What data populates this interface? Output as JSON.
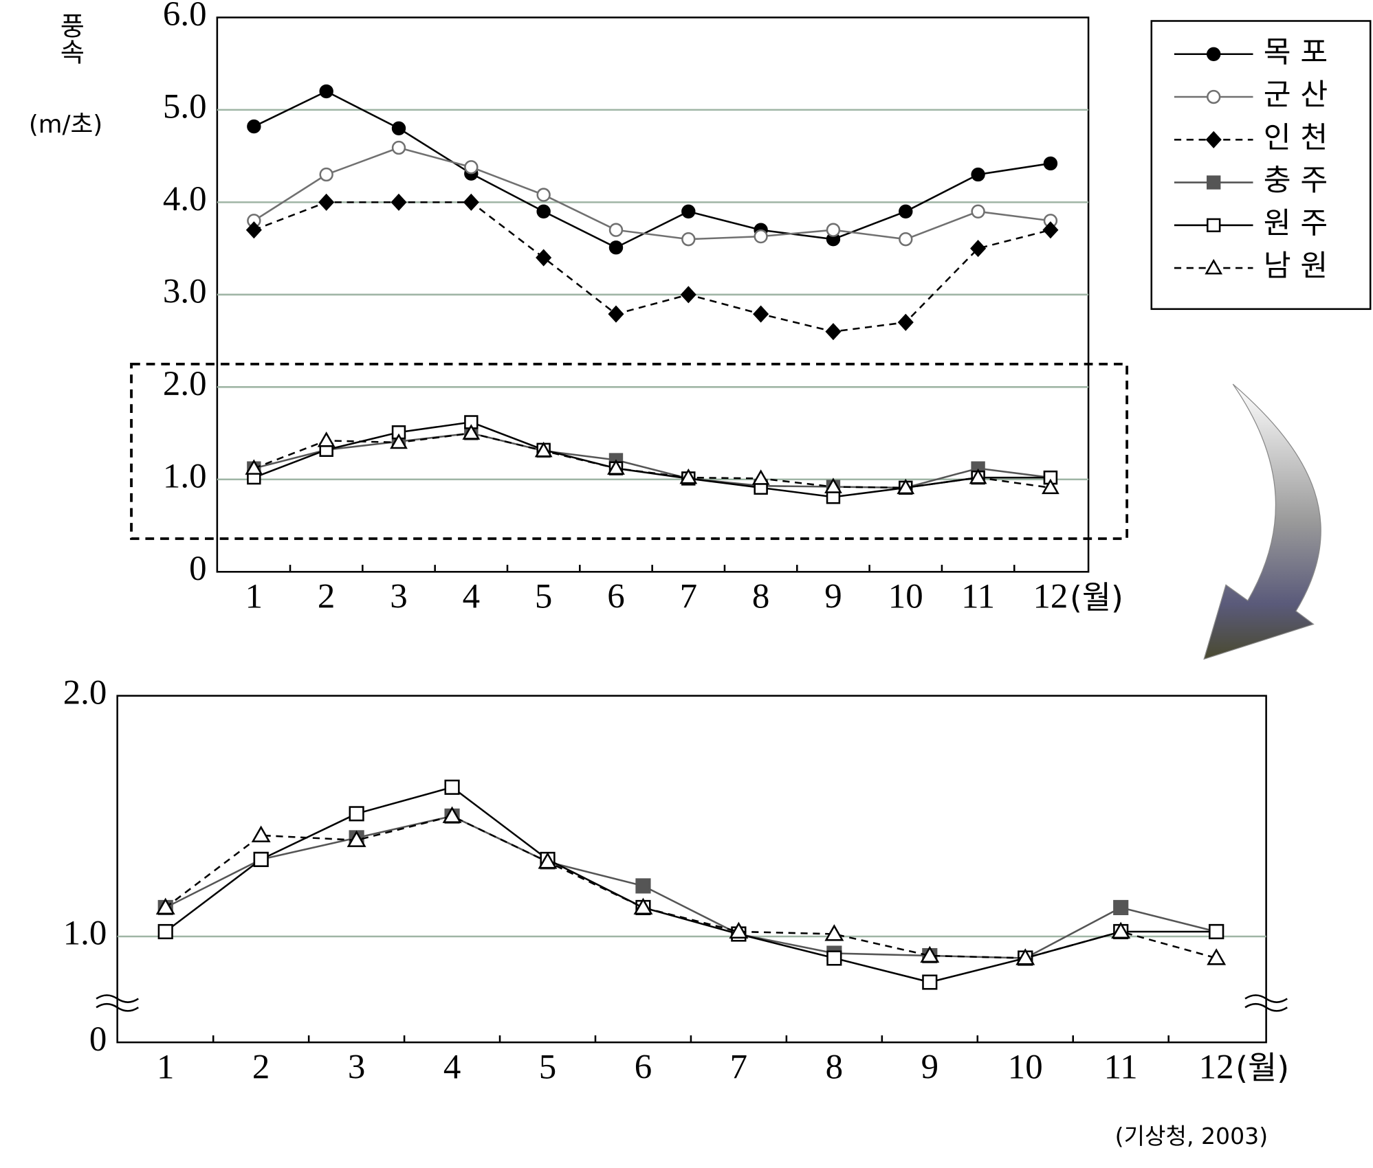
{
  "chart_data": [
    {
      "type": "line",
      "y_label": "풍속",
      "y_unit": "(m/초)",
      "x_unit": "(월)",
      "categories": [
        "1",
        "2",
        "3",
        "4",
        "5",
        "6",
        "7",
        "8",
        "9",
        "10",
        "11",
        "12"
      ],
      "ylim": [
        0,
        6
      ],
      "yticks": [
        0,
        {
          "value": 1,
          "label": "1.0"
        },
        {
          "value": 2,
          "label": "2.0"
        },
        {
          "value": 3,
          "label": "3.0"
        },
        {
          "value": 4,
          "label": "4.0"
        },
        {
          "value": 5,
          "label": "5.0"
        },
        {
          "value": 6,
          "label": "6.0"
        }
      ],
      "grid": true,
      "legend": "right",
      "series": [
        {
          "name": "목 포",
          "color": "#000000",
          "marker": "circle-filled",
          "dash": false,
          "values": [
            4.82,
            5.2,
            4.8,
            4.31,
            3.9,
            3.51,
            3.9,
            3.7,
            3.6,
            3.9,
            4.3,
            4.42
          ]
        },
        {
          "name": "군 산",
          "color": "#707070",
          "marker": "circle-open",
          "dash": false,
          "values": [
            3.8,
            4.3,
            4.59,
            4.38,
            4.08,
            3.7,
            3.6,
            3.63,
            3.7,
            3.6,
            3.9,
            3.8
          ]
        },
        {
          "name": "인 천",
          "color": "#000000",
          "marker": "diamond-filled",
          "dash": true,
          "values": [
            3.7,
            4.0,
            4.0,
            4.0,
            3.4,
            2.79,
            3.0,
            2.79,
            2.6,
            2.7,
            3.5,
            3.7
          ]
        },
        {
          "name": "충 주",
          "color": "#555555",
          "marker": "square-filled",
          "dash": false,
          "values": [
            1.12,
            1.32,
            1.41,
            1.5,
            1.31,
            1.21,
            1.01,
            0.93,
            0.92,
            0.91,
            1.12,
            1.02
          ]
        },
        {
          "name": "원 주",
          "color": "#000000",
          "marker": "square-open",
          "dash": false,
          "values": [
            1.02,
            1.32,
            1.51,
            1.62,
            1.32,
            1.12,
            1.01,
            0.91,
            0.81,
            0.91,
            1.02,
            1.02
          ]
        },
        {
          "name": "남 원",
          "color": "#000000",
          "marker": "triangle-open",
          "dash": true,
          "values": [
            1.12,
            1.42,
            1.4,
            1.5,
            1.31,
            1.12,
            1.02,
            1.01,
            0.92,
            0.91,
            1.02,
            0.91
          ]
        }
      ]
    },
    {
      "type": "line",
      "x_unit": "(월)",
      "axis_break": true,
      "categories": [
        "1",
        "2",
        "3",
        "4",
        "5",
        "6",
        "7",
        "8",
        "9",
        "10",
        "11",
        "12"
      ],
      "ylim": [
        0.56,
        2
      ],
      "yticks": [
        0,
        {
          "value": 1,
          "label": "1.0"
        },
        {
          "value": 2,
          "label": "2.0"
        }
      ],
      "grid": true,
      "series": [
        {
          "color": "#555555",
          "marker": "square-filled",
          "dash": false,
          "values": [
            1.12,
            1.32,
            1.41,
            1.5,
            1.31,
            1.21,
            1.01,
            0.93,
            0.92,
            0.91,
            1.12,
            1.02
          ]
        },
        {
          "color": "#000000",
          "marker": "square-open",
          "dash": false,
          "values": [
            1.02,
            1.32,
            1.51,
            1.62,
            1.32,
            1.12,
            1.01,
            0.91,
            0.81,
            0.91,
            1.02,
            1.02
          ]
        },
        {
          "color": "#000000",
          "marker": "triangle-open",
          "dash": true,
          "values": [
            1.12,
            1.42,
            1.4,
            1.5,
            1.31,
            1.12,
            1.02,
            1.01,
            0.92,
            0.91,
            1.02,
            0.91
          ]
        }
      ]
    }
  ],
  "source": "(기상청, 2003)"
}
